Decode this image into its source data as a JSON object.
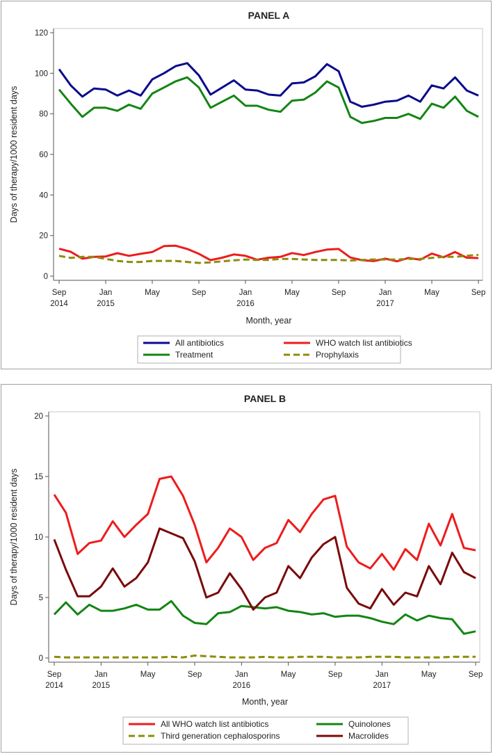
{
  "chart_data": [
    {
      "type": "line",
      "title": "PANEL A",
      "xlabel": "Month, year",
      "ylabel": "Days of therapy/1000 resident days",
      "ylim": [
        0,
        120
      ],
      "yticks": [
        0,
        20,
        40,
        60,
        80,
        100,
        120
      ],
      "x_tick_labels": [
        {
          "index": 0,
          "month": "Sep",
          "year": "2014"
        },
        {
          "index": 4,
          "month": "Jan",
          "year": "2015"
        },
        {
          "index": 8,
          "month": "May",
          "year": ""
        },
        {
          "index": 12,
          "month": "Sep",
          "year": ""
        },
        {
          "index": 16,
          "month": "Jan",
          "year": "2016"
        },
        {
          "index": 20,
          "month": "May",
          "year": ""
        },
        {
          "index": 24,
          "month": "Sep",
          "year": ""
        },
        {
          "index": 28,
          "month": "Jan",
          "year": "2017"
        },
        {
          "index": 32,
          "month": "May",
          "year": ""
        },
        {
          "index": 36,
          "month": "Sep",
          "year": ""
        }
      ],
      "series": [
        {
          "name": "All antibiotics",
          "color": "#0a0a8c",
          "dash": false,
          "values": [
            102,
            94,
            88.5,
            92.5,
            92,
            89,
            91.5,
            89,
            97,
            100,
            103.5,
            105,
            99,
            89.5,
            93,
            96.5,
            92,
            91.5,
            89.5,
            89,
            95,
            95.5,
            98.5,
            104.5,
            101,
            86,
            83.5,
            84.5,
            86,
            86.5,
            89,
            86,
            94,
            92.5,
            98,
            91.5,
            89
          ]
        },
        {
          "name": "WHO watch list antibiotics",
          "color": "#ee1c1c",
          "dash": false,
          "values": [
            13.5,
            12,
            8.6,
            9.5,
            9.7,
            11.3,
            10,
            11,
            11.9,
            14.8,
            15,
            13.4,
            11,
            7.9,
            9.1,
            10.7,
            10,
            8.1,
            9.1,
            9.5,
            11.4,
            10.4,
            11.9,
            13.1,
            13.4,
            9.2,
            7.9,
            7.4,
            8.6,
            7.3,
            9,
            8.1,
            11.1,
            9.3,
            11.9,
            9.1,
            8.9
          ]
        },
        {
          "name": "Treatment",
          "color": "#138513",
          "dash": false,
          "values": [
            92,
            85,
            78.5,
            83,
            83,
            81.5,
            84.5,
            82.5,
            90,
            93,
            96,
            98,
            93,
            83,
            86,
            89,
            84,
            84,
            82,
            81,
            86.5,
            87,
            90.5,
            96,
            93,
            78.5,
            75.5,
            76.5,
            78,
            78,
            80,
            77.5,
            85,
            83,
            88.5,
            81.5,
            78.5
          ]
        },
        {
          "name": "Prophylaxis",
          "color": "#8c8c0a",
          "dash": true,
          "values": [
            10,
            9,
            9.5,
            9.5,
            8.5,
            7.5,
            7,
            7,
            7.5,
            7.5,
            7.5,
            7,
            6.5,
            6.8,
            7.3,
            7.8,
            8.2,
            8,
            8,
            8.5,
            8.5,
            8.2,
            8,
            8,
            8,
            7.7,
            8,
            8.2,
            8.2,
            8.2,
            8.5,
            8.5,
            9,
            9.5,
            9.5,
            10,
            10.5
          ]
        }
      ],
      "legend": {
        "position": "bottom",
        "entries": [
          "All antibiotics",
          "WHO watch list antibiotics",
          "Treatment",
          "Prophylaxis"
        ]
      }
    },
    {
      "type": "line",
      "title": "PANEL B",
      "xlabel": "Month, year",
      "ylabel": "Days of therapy/1000 resident days",
      "ylim": [
        0,
        20
      ],
      "yticks": [
        0,
        5,
        10,
        15,
        20
      ],
      "x_tick_labels": [
        {
          "index": 0,
          "month": "Sep",
          "year": "2014"
        },
        {
          "index": 4,
          "month": "Jan",
          "year": "2015"
        },
        {
          "index": 8,
          "month": "May",
          "year": ""
        },
        {
          "index": 12,
          "month": "Sep",
          "year": ""
        },
        {
          "index": 16,
          "month": "Jan",
          "year": "2016"
        },
        {
          "index": 20,
          "month": "May",
          "year": ""
        },
        {
          "index": 24,
          "month": "Sep",
          "year": ""
        },
        {
          "index": 28,
          "month": "Jan",
          "year": "2017"
        },
        {
          "index": 32,
          "month": "May",
          "year": ""
        },
        {
          "index": 36,
          "month": "Sep",
          "year": ""
        }
      ],
      "series": [
        {
          "name": "All WHO watch list antibiotics",
          "color": "#ee1c1c",
          "dash": false,
          "values": [
            13.5,
            12,
            8.6,
            9.5,
            9.7,
            11.3,
            10,
            11,
            11.9,
            14.8,
            15,
            13.4,
            11,
            7.9,
            9.1,
            10.7,
            10,
            8.1,
            9.1,
            9.5,
            11.4,
            10.4,
            11.9,
            13.1,
            13.4,
            9.2,
            7.9,
            7.4,
            8.6,
            7.3,
            9,
            8.1,
            11.1,
            9.3,
            11.9,
            9.1,
            8.9
          ]
        },
        {
          "name": "Quinolones",
          "color": "#138513",
          "dash": false,
          "values": [
            3.6,
            4.6,
            3.6,
            4.4,
            3.9,
            3.9,
            4.1,
            4.4,
            4,
            4,
            4.7,
            3.5,
            2.9,
            2.8,
            3.7,
            3.8,
            4.3,
            4.2,
            4.1,
            4.2,
            3.9,
            3.8,
            3.6,
            3.7,
            3.4,
            3.5,
            3.5,
            3.3,
            3,
            2.8,
            3.6,
            3.1,
            3.5,
            3.3,
            3.2,
            2,
            2.2
          ]
        },
        {
          "name": "Third generation cephalosporins",
          "color": "#8c8c0a",
          "dash": true,
          "values": [
            0.1,
            0.05,
            0.05,
            0.05,
            0.05,
            0.05,
            0.05,
            0.05,
            0.05,
            0.05,
            0.1,
            0.05,
            0.2,
            0.15,
            0.1,
            0.05,
            0.05,
            0.05,
            0.1,
            0.05,
            0.05,
            0.1,
            0.1,
            0.1,
            0.05,
            0.05,
            0.05,
            0.1,
            0.1,
            0.1,
            0.05,
            0.05,
            0.05,
            0.05,
            0.1,
            0.1,
            0.1
          ]
        },
        {
          "name": "Macrolides",
          "color": "#7a0a0a",
          "dash": false,
          "values": [
            9.8,
            7.3,
            5.1,
            5.1,
            5.9,
            7.4,
            5.9,
            6.6,
            7.9,
            10.7,
            10.3,
            9.9,
            8,
            5,
            5.4,
            7,
            5.7,
            4,
            5,
            5.4,
            7.6,
            6.6,
            8.3,
            9.4,
            10,
            5.8,
            4.5,
            4.1,
            5.7,
            4.4,
            5.4,
            5.1,
            7.6,
            6.1,
            8.7,
            7.1,
            6.6
          ]
        }
      ],
      "legend": {
        "position": "bottom",
        "entries": [
          "All WHO watch list antibiotics",
          "Quinolones",
          "Third generation cephalosporins",
          "Macrolides"
        ]
      }
    }
  ]
}
